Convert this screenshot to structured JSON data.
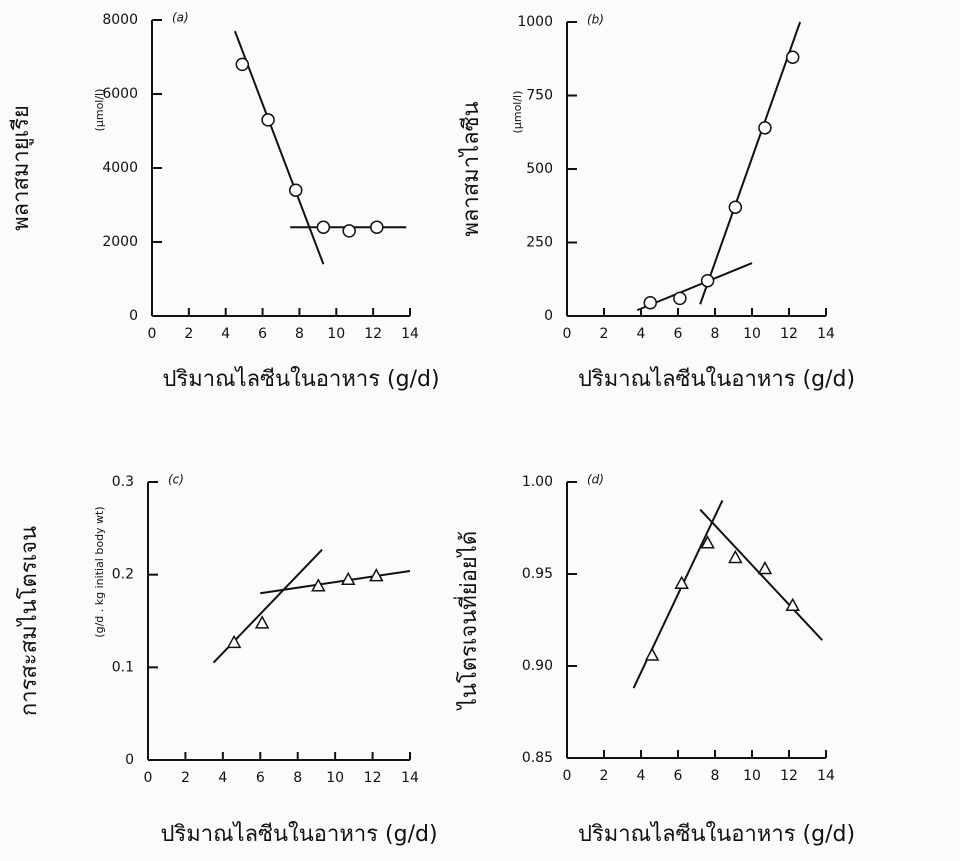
{
  "chart_data": [
    {
      "type": "scatter",
      "panel": "(a)",
      "ylabel": "พลาสมายูเรีย",
      "unit": "(μmol/l)",
      "xlabel": "ปริมาณไลซีนในอาหาร (g/d)",
      "x": [
        4.9,
        6.3,
        7.8,
        9.3,
        10.7,
        12.2
      ],
      "values": [
        6800,
        5300,
        3400,
        2400,
        2300,
        2400
      ],
      "marker": "circle",
      "lines": [
        {
          "x": [
            4.5,
            9.3
          ],
          "values": [
            7700,
            1400
          ]
        },
        {
          "x": [
            7.5,
            13.8
          ],
          "values": [
            2400,
            2400
          ]
        }
      ],
      "xlim": [
        0,
        14
      ],
      "xticks": [
        0,
        2,
        4,
        6,
        8,
        10,
        12,
        14
      ],
      "ylim": [
        0,
        8000
      ],
      "yticks": [
        0,
        2000,
        4000,
        6000,
        8000
      ]
    },
    {
      "type": "scatter",
      "panel": "(b)",
      "ylabel": "พลาสมาไลซีน",
      "unit": "(μmol/l)",
      "xlabel": "ปริมาณไลซีนในอาหาร (g/d)",
      "x": [
        4.5,
        6.1,
        7.6,
        9.1,
        10.7,
        12.2
      ],
      "values": [
        45,
        60,
        120,
        370,
        640,
        880
      ],
      "marker": "circle",
      "lines": [
        {
          "x": [
            3.8,
            10
          ],
          "values": [
            20,
            180
          ]
        },
        {
          "x": [
            7.2,
            12.6
          ],
          "values": [
            40,
            1000
          ]
        }
      ],
      "xlim": [
        0,
        14
      ],
      "xticks": [
        0,
        2,
        4,
        6,
        8,
        10,
        12,
        14
      ],
      "ylim": [
        0,
        1000
      ],
      "yticks": [
        0,
        250,
        500,
        750,
        1000
      ]
    },
    {
      "type": "scatter",
      "panel": "(c)",
      "ylabel": "การสะสมไนโตรเจน",
      "unit": "(g/d . kg initial body wt)",
      "xlabel": "ปริมาณไลซีนในอาหาร (g/d)",
      "x": [
        4.6,
        6.1,
        9.1,
        10.7,
        12.2
      ],
      "values": [
        0.127,
        0.148,
        0.188,
        0.195,
        0.199
      ],
      "marker": "triangle",
      "lines": [
        {
          "x": [
            3.5,
            9.3
          ],
          "values": [
            0.105,
            0.227
          ]
        },
        {
          "x": [
            6,
            14
          ],
          "values": [
            0.18,
            0.204
          ]
        }
      ],
      "xlim": [
        0,
        14
      ],
      "xticks": [
        0,
        2,
        4,
        6,
        8,
        10,
        12,
        14
      ],
      "ylim": [
        0,
        0.3
      ],
      "yticks": [
        0,
        0.1,
        0.2,
        0.3
      ]
    },
    {
      "type": "scatter",
      "panel": "(d)",
      "ylabel": "ไนโตรเจนที่ย่อยได้",
      "xlabel": "ปริมาณไลซีนในอาหาร (g/d)",
      "x": [
        4.6,
        6.2,
        7.6,
        9.1,
        10.7,
        12.2
      ],
      "values": [
        0.906,
        0.945,
        0.967,
        0.959,
        0.953,
        0.933
      ],
      "marker": "triangle",
      "lines": [
        {
          "x": [
            3.6,
            8.4
          ],
          "values": [
            0.888,
            0.99
          ]
        },
        {
          "x": [
            7.2,
            13.8
          ],
          "values": [
            0.985,
            0.914
          ]
        }
      ],
      "xlim": [
        0,
        14
      ],
      "xticks": [
        0,
        2,
        4,
        6,
        8,
        10,
        12,
        14
      ],
      "ylim": [
        0.85,
        1.0
      ],
      "yticks": [
        0.85,
        {
          "value": 0.9,
          "label": "0.90"
        },
        0.95,
        {
          "value": 1.0,
          "label": "1.00"
        }
      ]
    }
  ]
}
